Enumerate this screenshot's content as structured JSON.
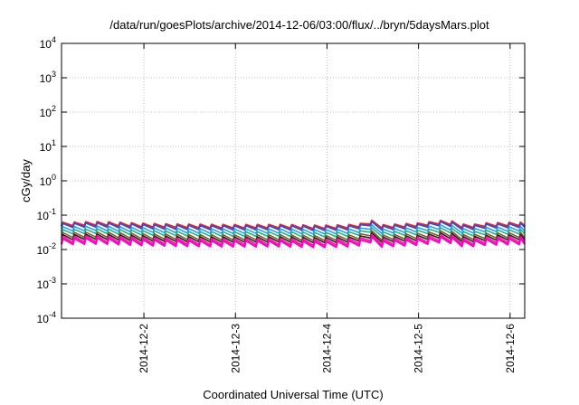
{
  "chart_data": {
    "type": "line",
    "title": "/data/run/goesPlots/archive/2014-12-06/03:00/flux/../bryn/5daysMars.plot",
    "xlabel": "Coordinated Universal Time (UTC)",
    "ylabel": "cGy/day",
    "yscale": "log",
    "ylim": [
      0.0001,
      10000
    ],
    "xlim": [
      1.1,
      6.16
    ],
    "x_unit": "days (2014-12-DD)",
    "y_ticks": [
      {
        "base": "10",
        "exp": "4",
        "value": 10000
      },
      {
        "base": "10",
        "exp": "3",
        "value": 1000
      },
      {
        "base": "10",
        "exp": "2",
        "value": 100
      },
      {
        "base": "10",
        "exp": "1",
        "value": 10
      },
      {
        "base": "10",
        "exp": "0",
        "value": 1
      },
      {
        "base": "10",
        "exp": "-1",
        "value": 0.1
      },
      {
        "base": "10",
        "exp": "-2",
        "value": 0.01
      },
      {
        "base": "10",
        "exp": "-3",
        "value": 0.001
      },
      {
        "base": "10",
        "exp": "-4",
        "value": 0.0001
      }
    ],
    "x_ticks": [
      {
        "label": "2014-12-2",
        "value": 2
      },
      {
        "label": "2014-12-3",
        "value": 3
      },
      {
        "label": "2014-12-4",
        "value": 4
      },
      {
        "label": "2014-12-5",
        "value": 5
      },
      {
        "label": "2014-12-6",
        "value": 6
      }
    ],
    "grid": true,
    "legend": "none",
    "sawtooth_period_days": 0.125,
    "envelope": [
      {
        "x": 1.1,
        "factor": 1.0
      },
      {
        "x": 1.5,
        "factor": 1.05
      },
      {
        "x": 2.0,
        "factor": 0.93
      },
      {
        "x": 2.5,
        "factor": 0.88
      },
      {
        "x": 3.0,
        "factor": 0.86
      },
      {
        "x": 3.5,
        "factor": 0.87
      },
      {
        "x": 3.9,
        "factor": 0.82
      },
      {
        "x": 4.2,
        "factor": 0.85
      },
      {
        "x": 4.35,
        "factor": 0.92
      },
      {
        "x": 4.42,
        "factor": 1.22
      },
      {
        "x": 4.5,
        "factor": 1.1
      },
      {
        "x": 4.6,
        "factor": 0.85
      },
      {
        "x": 5.0,
        "factor": 0.96
      },
      {
        "x": 5.25,
        "factor": 1.15
      },
      {
        "x": 5.4,
        "factor": 1.05
      },
      {
        "x": 5.52,
        "factor": 0.78
      },
      {
        "x": 5.65,
        "factor": 0.95
      },
      {
        "x": 6.16,
        "factor": 1.02
      }
    ],
    "series": [
      {
        "color": "#e4202a",
        "peak": 0.061,
        "trough": 0.048
      },
      {
        "color": "#2e4fd6",
        "peak": 0.057,
        "trough": 0.043
      },
      {
        "color": "#2aa0f0",
        "peak": 0.046,
        "trough": 0.034
      },
      {
        "color": "#1fb58a",
        "peak": 0.038,
        "trough": 0.028
      },
      {
        "color": "#8a5a2b",
        "peak": 0.031,
        "trough": 0.022
      },
      {
        "color": "#222222",
        "peak": 0.027,
        "trough": 0.019
      },
      {
        "color": "#e6208f",
        "peak": 0.024,
        "trough": 0.016
      },
      {
        "color": "#ff00cc",
        "peak": 0.021,
        "trough": 0.014
      }
    ]
  }
}
